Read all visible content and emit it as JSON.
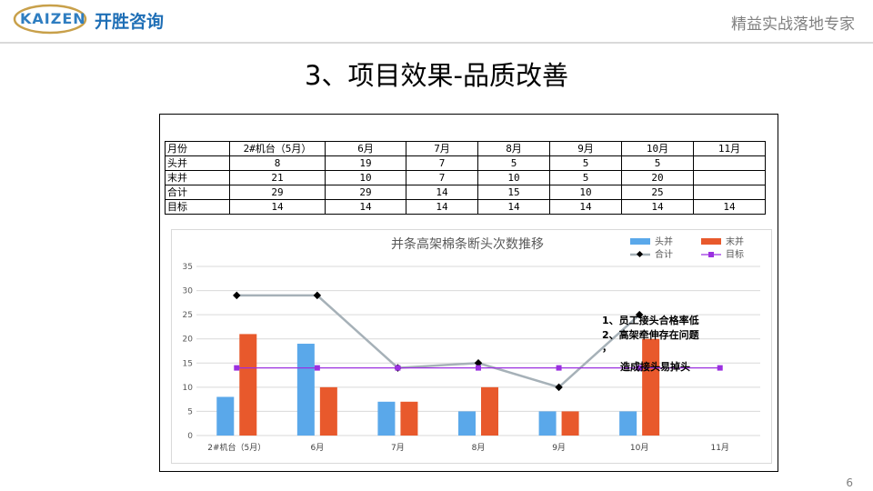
{
  "header": {
    "logo_text": "KAIZEN",
    "logo_cn": "开胜咨询",
    "slogan": "精益实战落地专家"
  },
  "title": "3、项目效果-品质改善",
  "table": {
    "headers": [
      "月份",
      "2#机台（5月）",
      "6月",
      "7月",
      "8月",
      "9月",
      "10月",
      "11月"
    ],
    "rows": [
      {
        "label": "头并",
        "cells": [
          "8",
          "19",
          "7",
          "5",
          "5",
          "5",
          ""
        ]
      },
      {
        "label": "末并",
        "cells": [
          "21",
          "10",
          "7",
          "10",
          "5",
          "20",
          ""
        ]
      },
      {
        "label": "合计",
        "cells": [
          "29",
          "29",
          "14",
          "15",
          "10",
          "25",
          ""
        ]
      },
      {
        "label": "目标",
        "cells": [
          "14",
          "14",
          "14",
          "14",
          "14",
          "14",
          "14"
        ]
      }
    ]
  },
  "chart_data": {
    "type": "bar",
    "title": "并条高架棉条断头次数推移",
    "categories": [
      "2#机台（5月）",
      "6月",
      "7月",
      "8月",
      "9月",
      "10月",
      "11月"
    ],
    "series": [
      {
        "name": "头并",
        "type": "bar",
        "color": "#5aa8ea",
        "values": [
          8,
          19,
          7,
          5,
          5,
          5,
          null
        ]
      },
      {
        "name": "末并",
        "type": "bar",
        "color": "#e8592c",
        "values": [
          21,
          10,
          7,
          10,
          5,
          20,
          null
        ]
      },
      {
        "name": "合计",
        "type": "line",
        "color": "#a6b1b8",
        "marker_color": "#000000",
        "values": [
          29,
          29,
          14,
          15,
          10,
          25,
          null
        ]
      },
      {
        "name": "目标",
        "type": "line",
        "color": "#9b30e0",
        "values": [
          14,
          14,
          14,
          14,
          14,
          14,
          14
        ]
      }
    ],
    "ylim": [
      0,
      35
    ],
    "yticks": [
      0,
      5,
      10,
      15,
      20,
      25,
      30,
      35
    ],
    "xlabel": "",
    "ylabel": "",
    "grid": true,
    "legend": "top-right",
    "annotation": [
      "1、员工接头合格率低",
      "2、高架牵伸存在问题",
      "，",
      "造成接头易掉头"
    ]
  },
  "page_number": "6"
}
